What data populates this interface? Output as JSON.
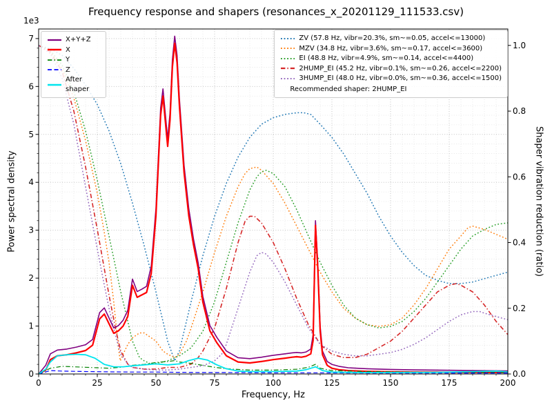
{
  "chart_data": {
    "type": "line",
    "title": "Frequency response and shapers (resonances_x_20201129_111533.csv)",
    "xlabel": "Frequency, Hz",
    "ylabel_left": "Power spectral density",
    "ylabel_right": "Shaper vibration reduction (ratio)",
    "left_offset_text": "1e3",
    "grid": true,
    "xlim": [
      0,
      200
    ],
    "ylim_left": [
      0,
      7200
    ],
    "ylim_right": [
      0,
      1.05
    ],
    "xticks": {
      "values": [
        0,
        25,
        50,
        75,
        100,
        125,
        150,
        175,
        200
      ],
      "labels": [
        "0",
        "25",
        "50",
        "75",
        "100",
        "125",
        "150",
        "175",
        "200"
      ]
    },
    "yticks_left": {
      "values": [
        0,
        1000,
        2000,
        3000,
        4000,
        5000,
        6000,
        7000
      ],
      "labels": [
        "0",
        "1",
        "2",
        "3",
        "4",
        "5",
        "6",
        "7"
      ]
    },
    "yticks_right": {
      "values": [
        0,
        0.2,
        0.4,
        0.6,
        0.8,
        1.0
      ],
      "labels": [
        "0.0",
        "0.2",
        "0.4",
        "0.6",
        "0.8",
        "1.0"
      ]
    },
    "minor": {
      "x_step": 5,
      "y_left_step": 200
    },
    "legend_psd": {
      "items": [
        {
          "series": "sum",
          "label": "X+Y+Z"
        },
        {
          "series": "x",
          "label": "X"
        },
        {
          "series": "y",
          "label": "Y"
        },
        {
          "series": "z",
          "label": "Z"
        },
        {
          "series": "after",
          "label": "After shaper"
        }
      ]
    },
    "legend_shapers": {
      "items": [
        {
          "series": "zv",
          "label": "ZV (57.8 Hz, vibr=20.3%, sm~=0.05, accel<=13000)"
        },
        {
          "series": "mzv",
          "label": "MZV (34.8 Hz, vibr=3.6%, sm~=0.17, accel<=3600)"
        },
        {
          "series": "ei",
          "label": "EI (48.8 Hz, vibr=4.9%, sm~=0.14, accel<=4400)"
        },
        {
          "series": "hump2",
          "label": "2HUMP_EI (45.2 Hz, vibr=0.1%, sm~=0.26, accel<=2200)"
        },
        {
          "series": "hump3",
          "label": "3HUMP_EI (48.0 Hz, vibr=0.0%, sm~=0.36, accel<=1500)"
        }
      ],
      "note": "Recommended shaper: 2HUMP_EI"
    },
    "series": [
      {
        "name": "zv",
        "axis": "right",
        "color": "#1f77b4",
        "style": "dotted",
        "width": 1.5,
        "x": [
          0,
          5,
          10,
          15,
          20,
          25,
          30,
          35,
          40,
          45,
          50,
          55,
          58,
          60,
          65,
          70,
          75,
          80,
          85,
          90,
          95,
          100,
          105,
          110,
          113,
          116,
          120,
          125,
          130,
          135,
          140,
          145,
          150,
          155,
          160,
          165,
          170,
          175,
          180,
          185,
          190,
          195,
          200
        ],
        "y": [
          1.0,
          0.99,
          0.97,
          0.93,
          0.88,
          0.82,
          0.74,
          0.64,
          0.52,
          0.39,
          0.25,
          0.1,
          0.04,
          0.07,
          0.22,
          0.36,
          0.48,
          0.58,
          0.66,
          0.72,
          0.76,
          0.78,
          0.79,
          0.795,
          0.795,
          0.79,
          0.76,
          0.72,
          0.67,
          0.61,
          0.55,
          0.48,
          0.42,
          0.37,
          0.33,
          0.3,
          0.285,
          0.275,
          0.275,
          0.28,
          0.29,
          0.3,
          0.31
        ]
      },
      {
        "name": "mzv",
        "axis": "right",
        "color": "#ff7f0e",
        "style": "dotted",
        "width": 1.5,
        "x": [
          0,
          5,
          10,
          15,
          20,
          25,
          28,
          30,
          32,
          34,
          34.8,
          36,
          38,
          40,
          43,
          45,
          48,
          50,
          53,
          55,
          58,
          60,
          63,
          65,
          70,
          75,
          80,
          85,
          88,
          90,
          93,
          95,
          100,
          105,
          110,
          115,
          120,
          125,
          130,
          135,
          140,
          145,
          150,
          155,
          160,
          165,
          170,
          175,
          180,
          183,
          185,
          190,
          195,
          200
        ],
        "y": [
          1.0,
          0.98,
          0.93,
          0.84,
          0.71,
          0.55,
          0.43,
          0.34,
          0.22,
          0.08,
          0.04,
          0.06,
          0.09,
          0.11,
          0.125,
          0.125,
          0.11,
          0.1,
          0.07,
          0.06,
          0.05,
          0.06,
          0.1,
          0.14,
          0.25,
          0.37,
          0.48,
          0.57,
          0.61,
          0.625,
          0.63,
          0.62,
          0.58,
          0.52,
          0.45,
          0.38,
          0.31,
          0.25,
          0.2,
          0.17,
          0.15,
          0.145,
          0.15,
          0.17,
          0.21,
          0.26,
          0.32,
          0.38,
          0.42,
          0.445,
          0.45,
          0.44,
          0.425,
          0.41
        ]
      },
      {
        "name": "ei",
        "axis": "right",
        "color": "#2ca02c",
        "style": "dotted",
        "width": 1.5,
        "x": [
          0,
          5,
          10,
          15,
          20,
          25,
          30,
          35,
          40,
          43,
          45,
          48,
          52,
          55,
          58,
          60,
          65,
          70,
          75,
          80,
          85,
          90,
          93,
          95,
          97,
          100,
          105,
          110,
          115,
          120,
          125,
          130,
          135,
          140,
          145,
          150,
          155,
          160,
          165,
          170,
          175,
          180,
          185,
          190,
          195,
          200
        ],
        "y": [
          1.0,
          0.985,
          0.94,
          0.86,
          0.74,
          0.59,
          0.42,
          0.25,
          0.1,
          0.05,
          0.04,
          0.03,
          0.035,
          0.04,
          0.05,
          0.055,
          0.08,
          0.13,
          0.22,
          0.34,
          0.46,
          0.56,
          0.6,
          0.615,
          0.62,
          0.61,
          0.57,
          0.5,
          0.42,
          0.34,
          0.27,
          0.21,
          0.17,
          0.15,
          0.14,
          0.145,
          0.16,
          0.19,
          0.23,
          0.28,
          0.33,
          0.38,
          0.42,
          0.44,
          0.455,
          0.46
        ]
      },
      {
        "name": "hump2",
        "axis": "right",
        "color": "#d62728",
        "style": "dashdot",
        "width": 1.6,
        "x": [
          0,
          5,
          10,
          15,
          20,
          25,
          28,
          30,
          33,
          35,
          38,
          40,
          45,
          50,
          55,
          60,
          65,
          68,
          70,
          75,
          80,
          85,
          88,
          90,
          92,
          95,
          100,
          105,
          110,
          115,
          120,
          125,
          130,
          135,
          140,
          145,
          150,
          155,
          160,
          165,
          170,
          175,
          178,
          180,
          185,
          190,
          195,
          200
        ],
        "y": [
          1.0,
          0.98,
          0.92,
          0.8,
          0.63,
          0.44,
          0.32,
          0.24,
          0.13,
          0.07,
          0.03,
          0.02,
          0.015,
          0.015,
          0.02,
          0.02,
          0.03,
          0.05,
          0.07,
          0.14,
          0.26,
          0.4,
          0.465,
          0.48,
          0.48,
          0.46,
          0.4,
          0.32,
          0.23,
          0.15,
          0.09,
          0.06,
          0.05,
          0.05,
          0.06,
          0.08,
          0.1,
          0.13,
          0.17,
          0.21,
          0.25,
          0.27,
          0.275,
          0.27,
          0.25,
          0.21,
          0.16,
          0.12
        ]
      },
      {
        "name": "hump3",
        "axis": "right",
        "color": "#9467bd",
        "style": "dotted",
        "width": 1.5,
        "x": [
          0,
          5,
          10,
          15,
          20,
          25,
          28,
          30,
          33,
          35,
          38,
          40,
          45,
          50,
          55,
          60,
          65,
          70,
          75,
          78,
          80,
          85,
          90,
          93,
          95,
          97,
          100,
          105,
          110,
          115,
          120,
          125,
          130,
          135,
          140,
          145,
          150,
          155,
          160,
          165,
          170,
          175,
          180,
          185,
          188,
          190,
          195,
          200
        ],
        "y": [
          1.0,
          0.975,
          0.9,
          0.76,
          0.57,
          0.38,
          0.27,
          0.2,
          0.11,
          0.06,
          0.03,
          0.02,
          0.015,
          0.012,
          0.012,
          0.015,
          0.02,
          0.025,
          0.04,
          0.06,
          0.09,
          0.2,
          0.31,
          0.36,
          0.37,
          0.365,
          0.34,
          0.28,
          0.21,
          0.14,
          0.09,
          0.07,
          0.06,
          0.055,
          0.055,
          0.06,
          0.065,
          0.075,
          0.09,
          0.11,
          0.135,
          0.16,
          0.18,
          0.19,
          0.19,
          0.185,
          0.175,
          0.165
        ]
      },
      {
        "name": "sum",
        "axis": "left",
        "color": "#800080",
        "style": "solid",
        "width": 1.6,
        "x": [
          0,
          3,
          5,
          8,
          12,
          16,
          20,
          23,
          26,
          28,
          30,
          32,
          34,
          36,
          38,
          40,
          42,
          44,
          46,
          48,
          50,
          52,
          53,
          55,
          56,
          57,
          58,
          59,
          60,
          62,
          64,
          66,
          68,
          70,
          73,
          76,
          80,
          85,
          90,
          95,
          100,
          105,
          108,
          110,
          112,
          114,
          116,
          117,
          118,
          119,
          120,
          121,
          123,
          125,
          128,
          132,
          140,
          150,
          160,
          180,
          200
        ],
        "y": [
          0,
          180,
          420,
          500,
          520,
          560,
          610,
          720,
          1280,
          1380,
          1170,
          960,
          1010,
          1120,
          1330,
          1980,
          1720,
          1770,
          1830,
          2250,
          3450,
          5550,
          5950,
          4900,
          5450,
          6550,
          7050,
          6650,
          5750,
          4350,
          3450,
          2820,
          2320,
          1620,
          1010,
          760,
          480,
          340,
          320,
          350,
          390,
          420,
          440,
          450,
          440,
          460,
          520,
          820,
          3200,
          2300,
          1000,
          480,
          260,
          200,
          160,
          130,
          110,
          95,
          85,
          75,
          65
        ]
      },
      {
        "name": "x",
        "axis": "left",
        "color": "#ff0000",
        "style": "solid",
        "width": 2.2,
        "x": [
          0,
          3,
          5,
          8,
          12,
          16,
          20,
          23,
          26,
          28,
          30,
          32,
          34,
          36,
          38,
          40,
          42,
          44,
          46,
          48,
          50,
          52,
          53,
          55,
          56,
          57,
          58,
          59,
          60,
          62,
          64,
          66,
          68,
          70,
          73,
          76,
          80,
          85,
          90,
          95,
          100,
          105,
          108,
          110,
          112,
          114,
          116,
          117,
          118,
          119,
          120,
          121,
          123,
          125,
          128,
          132,
          140,
          150,
          160,
          180,
          200
        ],
        "y": [
          0,
          80,
          300,
          380,
          400,
          440,
          490,
          600,
          1150,
          1250,
          1050,
          850,
          900,
          1000,
          1200,
          1850,
          1600,
          1650,
          1700,
          2100,
          3300,
          5400,
          5800,
          4750,
          5300,
          6400,
          6900,
          6500,
          5600,
          4200,
          3300,
          2700,
          2200,
          1500,
          900,
          650,
          380,
          250,
          230,
          260,
          300,
          330,
          350,
          360,
          350,
          370,
          420,
          700,
          3100,
          2200,
          900,
          400,
          180,
          120,
          90,
          70,
          55,
          45,
          40,
          35,
          30
        ]
      },
      {
        "name": "y",
        "axis": "left",
        "color": "#008000",
        "style": "dashdot",
        "width": 1.2,
        "x": [
          0,
          5,
          10,
          15,
          20,
          25,
          30,
          35,
          40,
          45,
          50,
          55,
          58,
          60,
          65,
          70,
          75,
          80,
          90,
          100,
          110,
          115,
          118,
          120,
          125,
          140,
          160,
          180,
          200
        ],
        "y": [
          0,
          120,
          160,
          150,
          140,
          130,
          120,
          140,
          180,
          200,
          240,
          260,
          280,
          250,
          220,
          180,
          140,
          110,
          80,
          80,
          100,
          140,
          200,
          120,
          70,
          50,
          40,
          35,
          30
        ]
      },
      {
        "name": "z",
        "axis": "left",
        "color": "#0000ff",
        "style": "dashed",
        "width": 1.2,
        "x": [
          0,
          5,
          10,
          20,
          30,
          40,
          50,
          60,
          70,
          80,
          100,
          120,
          140,
          160,
          180,
          200
        ],
        "y": [
          0,
          70,
          60,
          50,
          45,
          40,
          40,
          35,
          30,
          30,
          25,
          25,
          20,
          20,
          20,
          20
        ]
      },
      {
        "name": "after",
        "axis": "left",
        "color": "#00e5ee",
        "style": "solid",
        "width": 1.8,
        "x": [
          0,
          3,
          5,
          8,
          12,
          16,
          20,
          24,
          28,
          32,
          36,
          40,
          45,
          50,
          55,
          60,
          64,
          68,
          72,
          76,
          80,
          85,
          90,
          100,
          110,
          114,
          118,
          121,
          125,
          135,
          150,
          170,
          185,
          195,
          200
        ],
        "y": [
          0,
          100,
          250,
          380,
          400,
          410,
          400,
          330,
          200,
          150,
          150,
          170,
          190,
          210,
          190,
          210,
          280,
          330,
          290,
          190,
          110,
          60,
          50,
          50,
          60,
          90,
          150,
          70,
          40,
          30,
          30,
          35,
          50,
          60,
          45
        ]
      }
    ]
  }
}
